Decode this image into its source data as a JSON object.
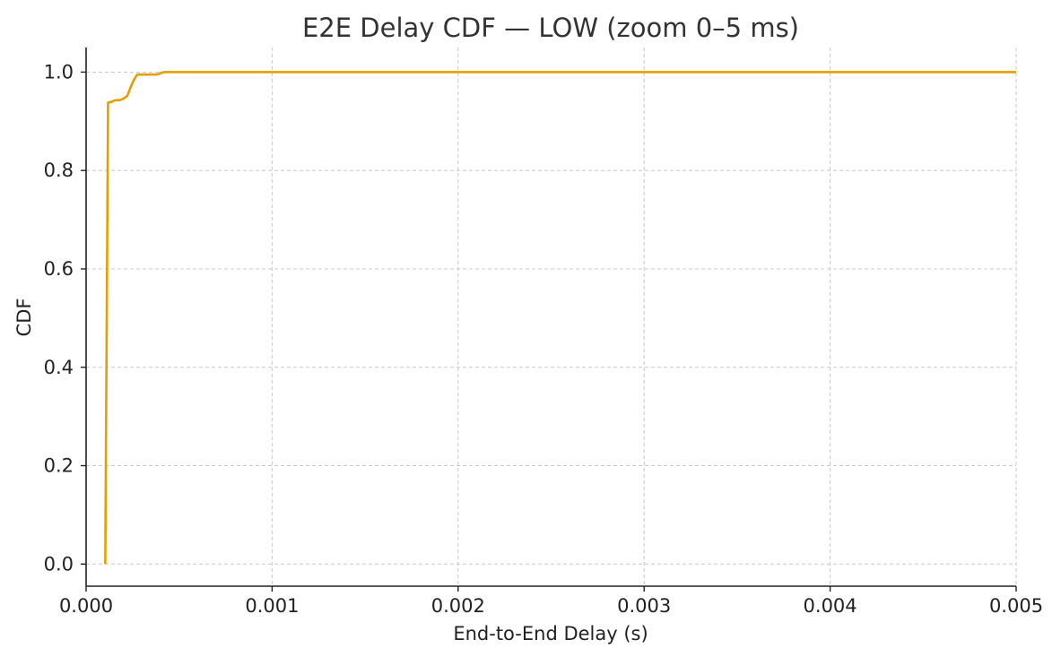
{
  "chart_data": {
    "type": "line",
    "title": "E2E Delay CDF — LOW (zoom 0–5 ms)",
    "xlabel": "End-to-End Delay (s)",
    "ylabel": "CDF",
    "xlim": [
      0,
      0.005
    ],
    "ylim": [
      -0.045,
      1.05
    ],
    "xticks": [
      0,
      0.001,
      0.002,
      0.003,
      0.004,
      0.005
    ],
    "xtick_labels": [
      "0.000",
      "0.001",
      "0.002",
      "0.003",
      "0.004",
      "0.005"
    ],
    "yticks": [
      0,
      0.2,
      0.4,
      0.6,
      0.8,
      1.0
    ],
    "ytick_labels": [
      "0.0",
      "0.2",
      "0.4",
      "0.6",
      "0.8",
      "1.0"
    ],
    "grid": true,
    "series": [
      {
        "color": "#E69F00",
        "x": [
          0.000103,
          0.000118,
          0.000122,
          0.00013,
          0.000136,
          0.00014,
          0.00015,
          0.000165,
          0.00018,
          0.00019,
          0.000205,
          0.000222,
          0.00024,
          0.000258,
          0.000275,
          0.0003,
          0.00034,
          0.00038,
          0.000395,
          0.000408,
          0.00042,
          0.00045,
          0.005
        ],
        "y": [
          0.0,
          0.938,
          0.938,
          0.939,
          0.939,
          0.94,
          0.942,
          0.943,
          0.943,
          0.944,
          0.947,
          0.952,
          0.97,
          0.985,
          0.995,
          0.995,
          0.995,
          0.995,
          0.997,
          0.999,
          1.0,
          1.0,
          1.0
        ]
      }
    ]
  }
}
